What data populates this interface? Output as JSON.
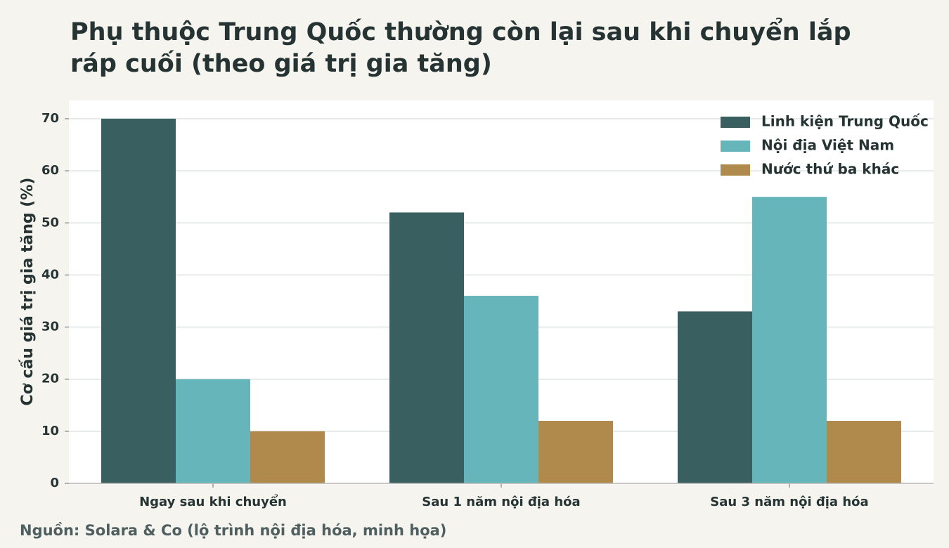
{
  "chart_data": {
    "type": "bar",
    "title": "Phụ thuộc Trung Quốc thường còn lại sau khi chuyển lắp ráp cuối (theo giá trị gia tăng)",
    "y_label": "Cơ cấu giá trị gia tăng (%)",
    "source": "Nguồn: Solara & Co (lộ trình nội địa hóa, minh họa)",
    "categories": [
      "Ngay sau khi chuyển",
      "Sau 1 năm nội địa hóa",
      "Sau 3 năm nội địa hóa"
    ],
    "series": [
      {
        "name": "Linh kiện Trung Quốc",
        "color": "#3a5f60",
        "values": [
          70,
          52,
          33
        ]
      },
      {
        "name": "Nội địa Việt Nam",
        "color": "#66b5ba",
        "values": [
          20,
          36,
          55
        ]
      },
      {
        "name": "Nước thứ ba khác",
        "color": "#b08a4d",
        "values": [
          10,
          12,
          12
        ]
      }
    ],
    "ylim": [
      0,
      73.5
    ],
    "yticks": [
      0,
      10,
      20,
      30,
      40,
      50,
      60,
      70
    ],
    "grid": true,
    "legend": "upper right"
  }
}
